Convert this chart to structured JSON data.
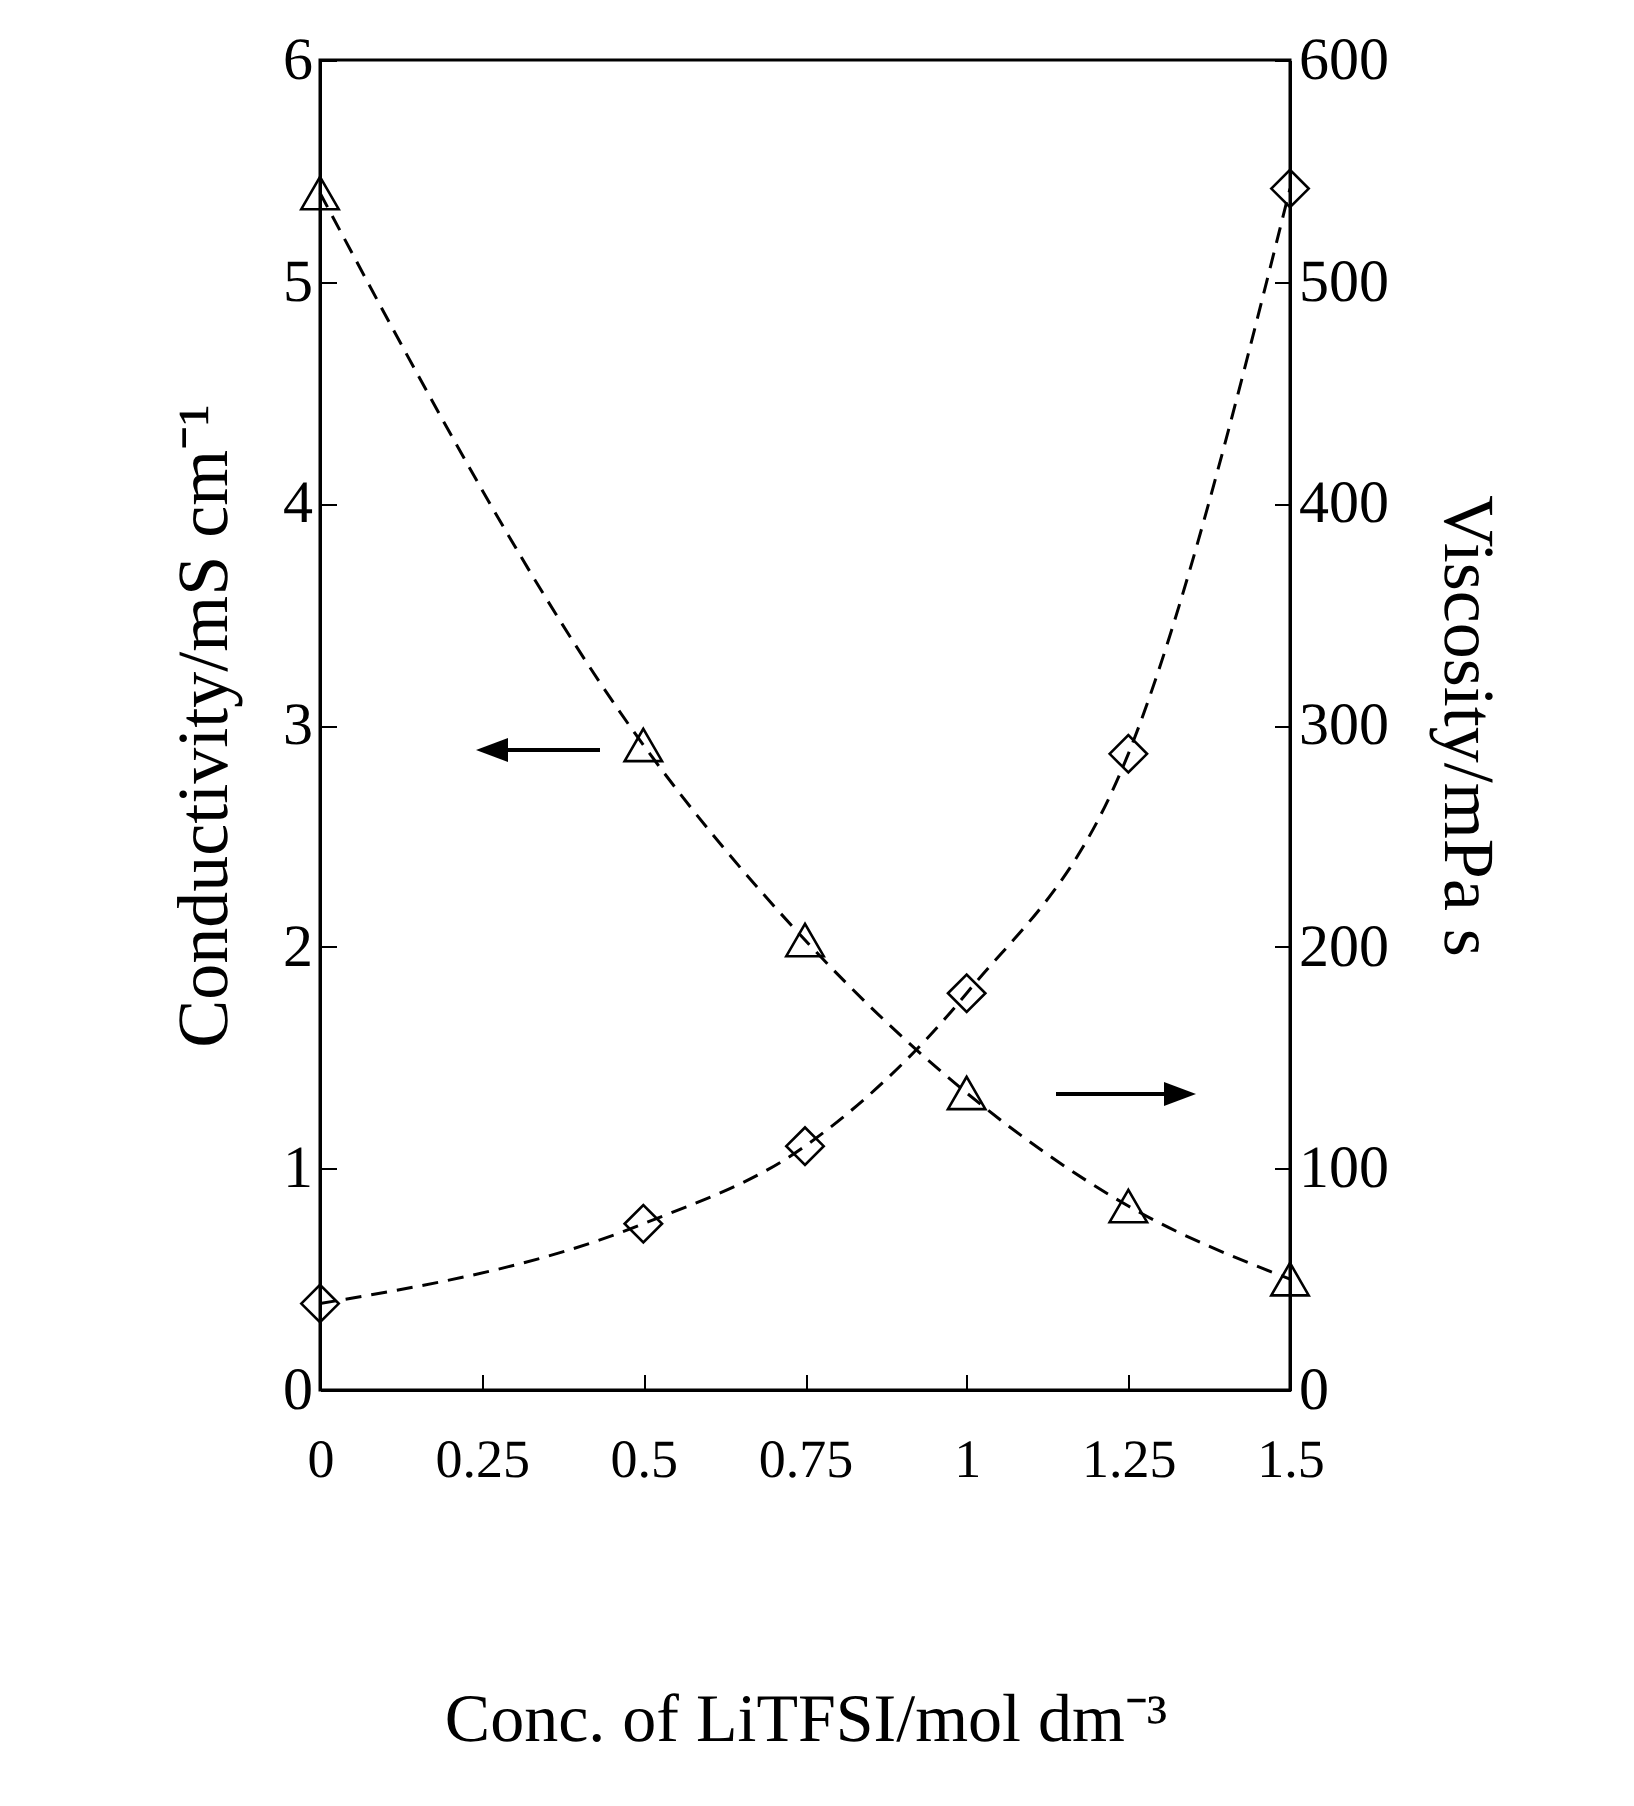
{
  "chart_data": {
    "type": "line",
    "xlabel": "Conc. of LiTFSI/mol dm⁻³",
    "ylabel": "Conductivity/mS cm⁻¹",
    "y2label": "Viscosity/mPa s",
    "x": [
      0,
      0.5,
      0.75,
      1,
      1.25,
      1.5
    ],
    "xlim": [
      0,
      1.5
    ],
    "xticks": [
      0,
      0.25,
      0.5,
      0.75,
      1,
      1.25,
      1.5
    ],
    "ylim": [
      0,
      6
    ],
    "yticks": [
      0,
      1,
      2,
      3,
      4,
      5,
      6
    ],
    "y2lim": [
      0,
      600
    ],
    "y2ticks": [
      0,
      100,
      200,
      300,
      400,
      500,
      600
    ],
    "series": [
      {
        "color": "#000000",
        "marker": "triangle",
        "line_style": "dashed",
        "values": [
          5.4,
          2.91,
          2.03,
          1.34,
          0.83,
          0.5
        ]
      },
      {
        "color": "#000000",
        "marker": "diamond",
        "line_style": "dashed",
        "axis": "y2",
        "values": [
          39,
          75,
          110,
          179,
          287,
          542
        ]
      }
    ],
    "grid": false
  }
}
